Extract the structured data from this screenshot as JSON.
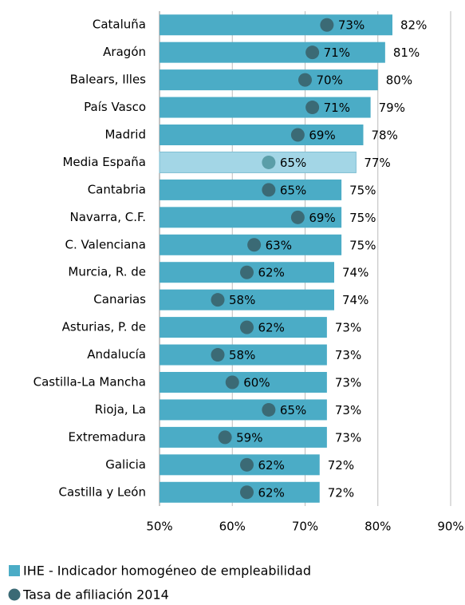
{
  "chart_data": {
    "type": "bar",
    "orientation": "horizontal",
    "categories": [
      "Cataluña",
      "Aragón",
      "Balears, Illes",
      "País Vasco",
      "Madrid",
      "Media España",
      "Cantabria",
      "Navarra, C.F.",
      "C. Valenciana",
      "Murcia, R. de",
      "Canarias",
      "Asturias, P. de",
      "Andalucía",
      "Castilla-La Mancha",
      "Rioja, La",
      "Extremadura",
      "Galicia",
      "Castilla y León"
    ],
    "series": [
      {
        "name": "IHE - Indicador homogéneo de empleabilidad",
        "mark": "bar",
        "color": "#4bacc6",
        "colors": [
          "#4bacc6",
          "#4bacc6",
          "#4bacc6",
          "#4bacc6",
          "#4bacc6",
          "#a3d6e6",
          "#4bacc6",
          "#4bacc6",
          "#4bacc6",
          "#4bacc6",
          "#4bacc6",
          "#4bacc6",
          "#4bacc6",
          "#4bacc6",
          "#4bacc6",
          "#4bacc6",
          "#4bacc6",
          "#4bacc6"
        ],
        "values": [
          82,
          81,
          80,
          79,
          78,
          77,
          75,
          75,
          75,
          74,
          74,
          73,
          73,
          73,
          73,
          73,
          72,
          72
        ],
        "value_labels": [
          "82%",
          "81%",
          "80%",
          "79%",
          "78%",
          "77%",
          "75%",
          "75%",
          "75%",
          "74%",
          "74%",
          "73%",
          "73%",
          "73%",
          "73%",
          "73%",
          "72%",
          "72%"
        ]
      },
      {
        "name": "Tasa de afiliación 2014",
        "mark": "dot",
        "color": "#3b6a75",
        "colors": [
          "#3b6a75",
          "#3b6a75",
          "#3b6a75",
          "#3b6a75",
          "#3b6a75",
          "#5b9ea8",
          "#3b6a75",
          "#3b6a75",
          "#3b6a75",
          "#3b6a75",
          "#3b6a75",
          "#3b6a75",
          "#3b6a75",
          "#3b6a75",
          "#3b6a75",
          "#3b6a75",
          "#3b6a75",
          "#3b6a75"
        ],
        "values": [
          73,
          71,
          70,
          71,
          69,
          65,
          65,
          69,
          63,
          62,
          58,
          62,
          58,
          60,
          65,
          59,
          62,
          62
        ],
        "value_labels": [
          "73%",
          "71%",
          "70%",
          "71%",
          "69%",
          "65%",
          "65%",
          "69%",
          "63%",
          "62%",
          "58%",
          "62%",
          "58%",
          "60%",
          "65%",
          "59%",
          "62%",
          "62%"
        ]
      }
    ],
    "xlim": [
      50,
      90
    ],
    "xticks": [
      {
        "value": 50,
        "label": "50%"
      },
      {
        "value": 60,
        "label": "60%"
      },
      {
        "value": 70,
        "label": "70%"
      },
      {
        "value": 80,
        "label": "80%"
      },
      {
        "value": 90,
        "label": "90%"
      }
    ],
    "grid": true,
    "legend": "bottom"
  }
}
